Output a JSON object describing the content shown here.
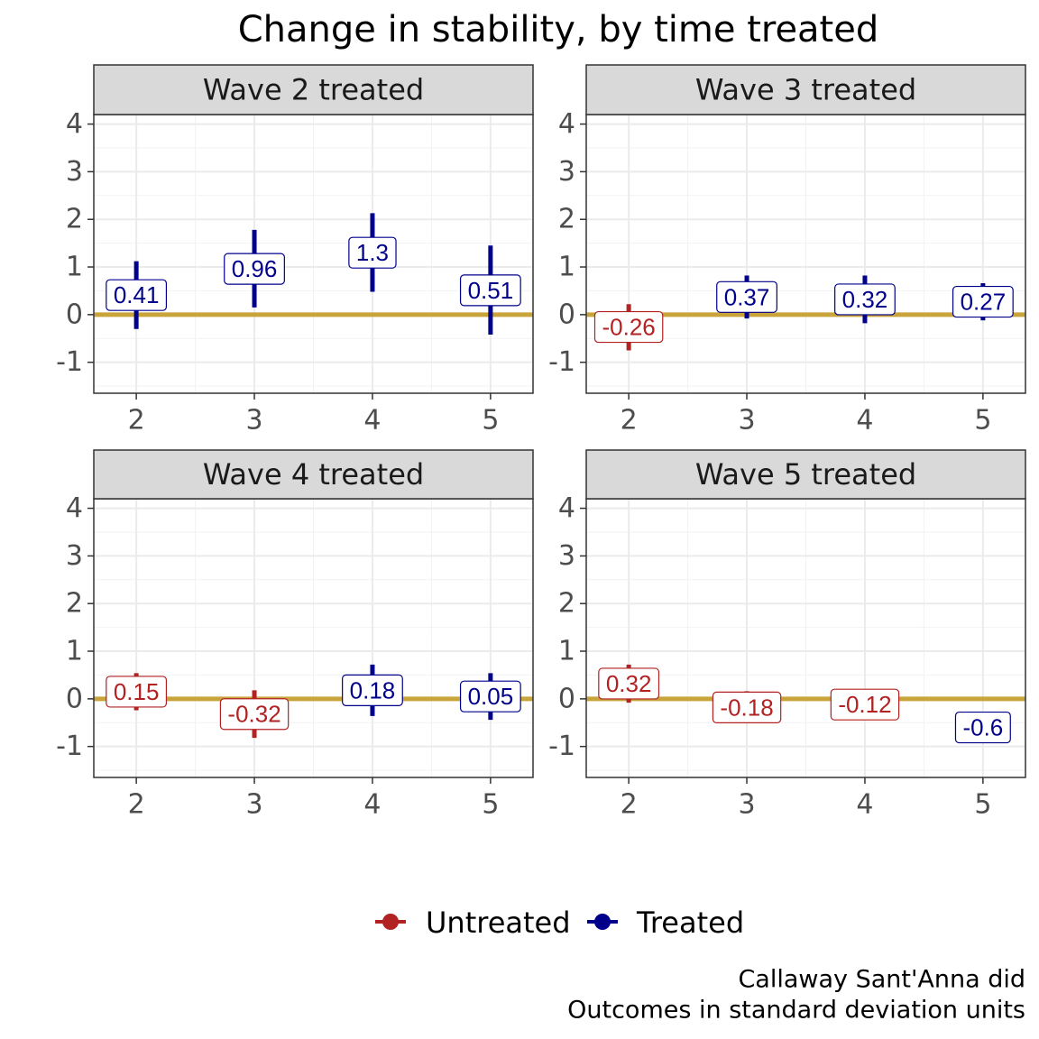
{
  "chart_data": {
    "type": "scatter",
    "title": "Change in stability, by time treated",
    "xlabel": "",
    "ylabel": "",
    "x_ticks": [
      2,
      3,
      4,
      5
    ],
    "y_ticks": [
      4,
      3,
      2,
      1,
      0,
      -1
    ],
    "xlim": [
      1.64,
      5.36
    ],
    "ylim": [
      -1.65,
      4.2
    ],
    "reference_line": 0,
    "grid": true,
    "legend_position": "bottom",
    "legend": [
      {
        "key": "untreated",
        "label": "Untreated",
        "color": "#b22222"
      },
      {
        "key": "treated",
        "label": "Treated",
        "color": "#00008b"
      }
    ],
    "reference_color": "#c9a43a",
    "caption": [
      "Callaway Sant'Anna did",
      "Outcomes in standard deviation units"
    ],
    "panels": [
      {
        "title": "Wave 2 treated",
        "points": [
          {
            "x": 2,
            "estimate": 0.41,
            "label": "0.41",
            "lower": -0.3,
            "upper": 1.12,
            "group": "treated"
          },
          {
            "x": 3,
            "estimate": 0.96,
            "label": "0.96",
            "lower": 0.15,
            "upper": 1.78,
            "group": "treated"
          },
          {
            "x": 4,
            "estimate": 1.3,
            "label": "1.3",
            "lower": 0.48,
            "upper": 2.13,
            "group": "treated"
          },
          {
            "x": 5,
            "estimate": 0.51,
            "label": "0.51",
            "lower": -0.42,
            "upper": 1.45,
            "group": "treated"
          }
        ]
      },
      {
        "title": "Wave 3 treated",
        "points": [
          {
            "x": 2,
            "estimate": -0.26,
            "label": "-0.26",
            "lower": -0.75,
            "upper": 0.22,
            "group": "untreated"
          },
          {
            "x": 3,
            "estimate": 0.37,
            "label": "0.37",
            "lower": -0.08,
            "upper": 0.82,
            "group": "treated"
          },
          {
            "x": 4,
            "estimate": 0.32,
            "label": "0.32",
            "lower": -0.18,
            "upper": 0.82,
            "group": "treated"
          },
          {
            "x": 5,
            "estimate": 0.27,
            "label": "0.27",
            "lower": -0.12,
            "upper": 0.66,
            "group": "treated"
          }
        ]
      },
      {
        "title": "Wave 4 treated",
        "points": [
          {
            "x": 2,
            "estimate": 0.15,
            "label": "0.15",
            "lower": -0.24,
            "upper": 0.54,
            "group": "untreated"
          },
          {
            "x": 3,
            "estimate": -0.32,
            "label": "-0.32",
            "lower": -0.82,
            "upper": 0.18,
            "group": "untreated"
          },
          {
            "x": 4,
            "estimate": 0.18,
            "label": "0.18",
            "lower": -0.36,
            "upper": 0.72,
            "group": "treated"
          },
          {
            "x": 5,
            "estimate": 0.05,
            "label": "0.05",
            "lower": -0.44,
            "upper": 0.54,
            "group": "treated"
          }
        ]
      },
      {
        "title": "Wave 5 treated",
        "points": [
          {
            "x": 2,
            "estimate": 0.32,
            "label": "0.32",
            "lower": -0.08,
            "upper": 0.72,
            "group": "untreated"
          },
          {
            "x": 3,
            "estimate": -0.18,
            "label": "-0.18",
            "lower": -0.34,
            "upper": 0.16,
            "group": "untreated"
          },
          {
            "x": 4,
            "estimate": -0.12,
            "label": "-0.12",
            "lower": -0.26,
            "upper": 0.02,
            "group": "untreated"
          },
          {
            "x": 5,
            "estimate": -0.6,
            "label": "-0.6",
            "lower": -0.62,
            "upper": -0.58,
            "group": "treated"
          }
        ]
      }
    ]
  }
}
